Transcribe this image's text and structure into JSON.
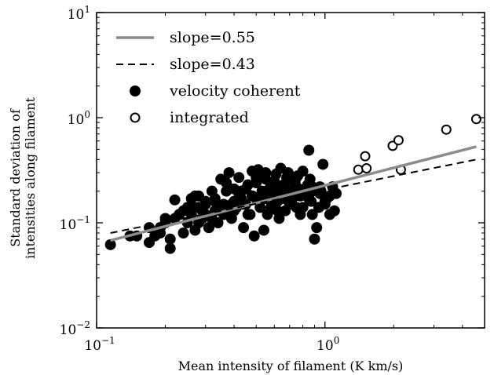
{
  "chart_data": {
    "type": "scatter",
    "title": "",
    "xlabel": "Mean intensity of filament (K km/s)",
    "ylabel_lines": [
      "Standard deviation of",
      "intensities along filament"
    ],
    "x_scale": "log",
    "y_scale": "log",
    "xlim": [
      0.1,
      5.0
    ],
    "ylim": [
      0.01,
      10
    ],
    "x_ticks": [
      {
        "value": 0.1,
        "base": "10",
        "exp": "−1"
      },
      {
        "value": 1,
        "base": "10",
        "exp": "0"
      }
    ],
    "y_ticks": [
      {
        "value": 0.01,
        "base": "10",
        "exp": "−2"
      },
      {
        "value": 0.1,
        "base": "10",
        "exp": "−1"
      },
      {
        "value": 1,
        "base": "10",
        "exp": "0"
      },
      {
        "value": 10,
        "base": "10",
        "exp": "1"
      }
    ],
    "grid": false,
    "legend_position": "top-left",
    "lines": [
      {
        "name": "slope=0.55",
        "style": "solid",
        "color": "#8c8c8c",
        "x": [
          0.115,
          4.6
        ],
        "y": [
          0.068,
          0.53
        ]
      },
      {
        "name": "slope=0.43",
        "style": "dashed",
        "color": "#000000",
        "x": [
          0.115,
          4.6
        ],
        "y": [
          0.08,
          0.4
        ]
      }
    ],
    "series": [
      {
        "name": "velocity coherent",
        "marker": "filled-circle",
        "color": "#000000",
        "x": [
          0.115,
          0.14,
          0.15,
          0.17,
          0.18,
          0.19,
          0.2,
          0.21,
          0.22,
          0.23,
          0.24,
          0.25,
          0.26,
          0.27,
          0.28,
          0.29,
          0.3,
          0.31,
          0.32,
          0.33,
          0.34,
          0.35,
          0.36,
          0.37,
          0.38,
          0.39,
          0.4,
          0.41,
          0.42,
          0.43,
          0.44,
          0.45,
          0.46,
          0.47,
          0.48,
          0.49,
          0.5,
          0.51,
          0.52,
          0.53,
          0.54,
          0.55,
          0.56,
          0.57,
          0.58,
          0.6,
          0.61,
          0.62,
          0.63,
          0.64,
          0.65,
          0.66,
          0.67,
          0.68,
          0.69,
          0.7,
          0.72,
          0.74,
          0.75,
          0.76,
          0.77,
          0.78,
          0.8,
          0.82,
          0.84,
          0.85,
          0.86,
          0.87,
          0.88,
          0.9,
          0.92,
          0.94,
          0.96,
          0.98,
          1.0,
          1.02,
          1.05,
          1.08,
          1.1,
          1.12,
          0.21,
          0.22,
          0.24,
          0.25,
          0.26,
          0.27,
          0.28,
          0.29,
          0.3,
          0.31,
          0.32,
          0.33,
          0.34,
          0.36,
          0.37,
          0.38,
          0.4,
          0.42,
          0.44,
          0.45,
          0.46,
          0.48,
          0.5,
          0.52,
          0.55,
          0.58,
          0.6,
          0.62,
          0.65,
          0.68,
          0.7,
          0.72,
          0.75,
          0.78,
          0.8,
          0.85,
          0.88,
          0.9,
          0.95,
          1.0,
          1.05,
          0.17,
          0.2,
          0.23,
          0.27,
          0.3,
          0.35,
          0.4,
          0.45,
          0.5,
          0.55,
          0.6,
          0.65,
          0.7,
          0.76,
          0.82,
          0.88,
          0.95,
          0.19,
          0.28,
          0.33,
          0.39,
          0.43,
          0.48,
          0.53,
          0.58,
          0.63,
          0.72
        ],
        "y": [
          0.062,
          0.075,
          0.075,
          0.065,
          0.075,
          0.09,
          0.1,
          0.057,
          0.165,
          0.12,
          0.13,
          0.1,
          0.17,
          0.085,
          0.18,
          0.11,
          0.16,
          0.09,
          0.2,
          0.13,
          0.1,
          0.26,
          0.15,
          0.2,
          0.3,
          0.11,
          0.21,
          0.14,
          0.27,
          0.17,
          0.09,
          0.15,
          0.23,
          0.12,
          0.31,
          0.075,
          0.27,
          0.32,
          0.16,
          0.2,
          0.085,
          0.3,
          0.12,
          0.21,
          0.14,
          0.25,
          0.29,
          0.16,
          0.11,
          0.33,
          0.18,
          0.23,
          0.13,
          0.27,
          0.3,
          0.2,
          0.17,
          0.24,
          0.14,
          0.28,
          0.21,
          0.12,
          0.31,
          0.19,
          0.23,
          0.49,
          0.26,
          0.16,
          0.2,
          0.07,
          0.09,
          0.14,
          0.2,
          0.36,
          0.15,
          0.17,
          0.12,
          0.22,
          0.13,
          0.19,
          0.07,
          0.11,
          0.08,
          0.14,
          0.12,
          0.18,
          0.1,
          0.13,
          0.15,
          0.09,
          0.11,
          0.17,
          0.14,
          0.12,
          0.24,
          0.13,
          0.16,
          0.19,
          0.15,
          0.21,
          0.12,
          0.18,
          0.24,
          0.14,
          0.26,
          0.16,
          0.2,
          0.13,
          0.22,
          0.17,
          0.15,
          0.2,
          0.27,
          0.18,
          0.14,
          0.17,
          0.12,
          0.21,
          0.19,
          0.16,
          0.18,
          0.09,
          0.11,
          0.12,
          0.14,
          0.12,
          0.13,
          0.13,
          0.15,
          0.17,
          0.17,
          0.19,
          0.17,
          0.19,
          0.21,
          0.2,
          0.22,
          0.22,
          0.08,
          0.14,
          0.16,
          0.15,
          0.2,
          0.18,
          0.19,
          0.23,
          0.21,
          0.25
        ]
      },
      {
        "name": "integrated",
        "marker": "open-circle",
        "color": "#000000",
        "x": [
          1.4,
          1.5,
          1.52,
          1.98,
          2.1,
          2.15,
          3.4,
          4.6
        ],
        "y": [
          0.32,
          0.43,
          0.33,
          0.54,
          0.61,
          0.32,
          0.77,
          0.97
        ]
      }
    ]
  }
}
